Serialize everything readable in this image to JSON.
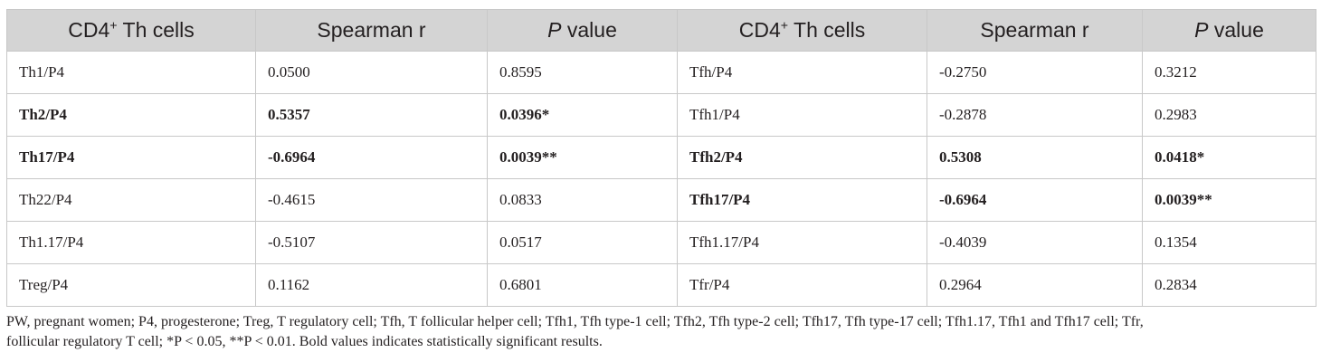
{
  "table": {
    "headers": [
      {
        "main": "CD4",
        "sup": "+",
        "rest": " Th cells"
      },
      {
        "main": "Spearman r"
      },
      {
        "italic": "P",
        "rest": " value"
      },
      {
        "main": "CD4",
        "sup": "+",
        "rest": " Th cells"
      },
      {
        "main": "Spearman r"
      },
      {
        "italic": "P",
        "rest": " value"
      }
    ],
    "rows": [
      {
        "left": {
          "cell": "Th1/P4",
          "r": "0.0500",
          "p": "0.8595",
          "bold": false
        },
        "right": {
          "cell": "Tfh/P4",
          "r": "-0.2750",
          "p": "0.3212",
          "bold": false
        }
      },
      {
        "left": {
          "cell": "Th2/P4",
          "r": "0.5357",
          "p": "0.0396",
          "mark": "*",
          "bold": true
        },
        "right": {
          "cell": "Tfh1/P4",
          "r": "-0.2878",
          "p": "0.2983",
          "bold": false
        }
      },
      {
        "left": {
          "cell": "Th17/P4",
          "r": "-0.6964",
          "p": "0.0039",
          "mark": "**",
          "bold": true
        },
        "right": {
          "cell": "Tfh2/P4",
          "r": "0.5308",
          "p": "0.0418",
          "mark": "*",
          "bold": true
        }
      },
      {
        "left": {
          "cell": "Th22/P4",
          "r": "-0.4615",
          "p": "0.0833",
          "bold": false
        },
        "right": {
          "cell": "Tfh17/P4",
          "r": "-0.6964",
          "p": "0.0039",
          "mark": "**",
          "bold": true
        }
      },
      {
        "left": {
          "cell": "Th1.17/P4",
          "r": "-0.5107",
          "p": "0.0517",
          "bold": false
        },
        "right": {
          "cell": "Tfh1.17/P4",
          "r": "-0.4039",
          "p": "0.1354",
          "bold": false
        }
      },
      {
        "left": {
          "cell": "Treg/P4",
          "r": "0.1162",
          "p": "0.6801",
          "bold": false
        },
        "right": {
          "cell": "Tfr/P4",
          "r": "0.2964",
          "p": "0.2834",
          "bold": false
        }
      }
    ]
  },
  "footnote": {
    "line1": "PW, pregnant women; P4, progesterone; Treg, T regulatory cell; Tfh, T follicular helper cell; Tfh1, Tfh type-1 cell; Tfh2, Tfh type-2 cell; Tfh17, Tfh type-17 cell; Tfh1.17, Tfh1 and Tfh17 cell; Tfr,",
    "line2": "follicular regulatory T cell; *P < 0.05, **P < 0.01. Bold values indicates statistically significant results."
  },
  "colors": {
    "header_bg": "#d4d4d4",
    "border": "#c8c8c8",
    "text": "#231f20"
  }
}
